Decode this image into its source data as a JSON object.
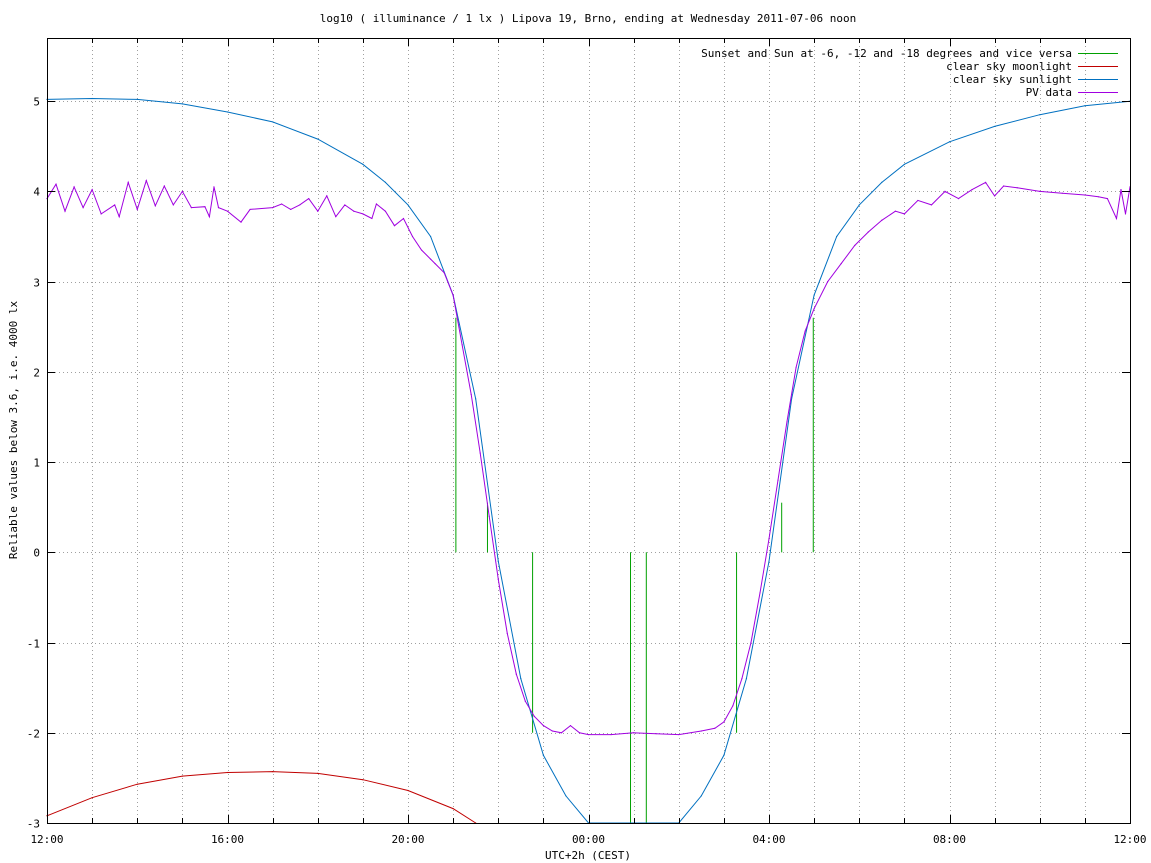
{
  "chart_data": {
    "type": "line",
    "title": "log10 ( illuminance / 1 lx ) Lipova 19, Brno, ending at Wednesday 2011-07-06 noon",
    "xlabel": "UTC+2h (CEST)",
    "ylabel": "Reliable values below 3.6, i.e. 4000 lx",
    "x_unit": "hours since 12:00 CEST (2011-07-05)",
    "xlim": [
      0,
      24
    ],
    "ylim": [
      -3,
      5.7
    ],
    "x_ticks": [
      {
        "value": 0,
        "label": "12:00"
      },
      {
        "value": 4,
        "label": "16:00"
      },
      {
        "value": 8,
        "label": "20:00"
      },
      {
        "value": 12,
        "label": "00:00"
      },
      {
        "value": 16,
        "label": "04:00"
      },
      {
        "value": 20,
        "label": "08:00"
      },
      {
        "value": 24,
        "label": "12:00"
      }
    ],
    "x_minor_step": 1,
    "y_ticks": [
      {
        "value": -3,
        "label": "-3"
      },
      {
        "value": -2,
        "label": "-2"
      },
      {
        "value": -1,
        "label": "-1"
      },
      {
        "value": 0,
        "label": "0"
      },
      {
        "value": 1,
        "label": "1"
      },
      {
        "value": 2,
        "label": "2"
      },
      {
        "value": 3,
        "label": "3"
      },
      {
        "value": 4,
        "label": "4"
      },
      {
        "value": 5,
        "label": "5"
      }
    ],
    "grid": true,
    "legend_position": "top-right",
    "series": [
      {
        "name": "Sunset and Sun at -6, -12 and -18 degrees and vice versa",
        "color": "#00a000",
        "kind": "impulses",
        "points": [
          {
            "x": 9.05,
            "y": 2.6
          },
          {
            "x": 9.75,
            "y": 0.55
          },
          {
            "x": 10.75,
            "y": -2.0
          },
          {
            "x": 12.92,
            "y": -3.0
          },
          {
            "x": 13.27,
            "y": -3.0
          },
          {
            "x": 15.27,
            "y": -2.0
          },
          {
            "x": 16.27,
            "y": 0.55
          },
          {
            "x": 16.97,
            "y": 2.6
          }
        ]
      },
      {
        "name": "clear sky moonlight",
        "color": "#c00000",
        "kind": "line",
        "points": [
          {
            "x": 0.0,
            "y": -2.92
          },
          {
            "x": 1.0,
            "y": -2.72
          },
          {
            "x": 2.0,
            "y": -2.57
          },
          {
            "x": 3.0,
            "y": -2.48
          },
          {
            "x": 4.0,
            "y": -2.44
          },
          {
            "x": 5.0,
            "y": -2.43
          },
          {
            "x": 6.0,
            "y": -2.45
          },
          {
            "x": 7.0,
            "y": -2.52
          },
          {
            "x": 8.0,
            "y": -2.64
          },
          {
            "x": 9.0,
            "y": -2.84
          },
          {
            "x": 9.5,
            "y": -3.0
          }
        ]
      },
      {
        "name": "clear sky sunlight",
        "color": "#0070c0",
        "kind": "line",
        "points": [
          {
            "x": 0.0,
            "y": 5.02
          },
          {
            "x": 1.0,
            "y": 5.03
          },
          {
            "x": 2.0,
            "y": 5.02
          },
          {
            "x": 3.0,
            "y": 4.97
          },
          {
            "x": 4.0,
            "y": 4.88
          },
          {
            "x": 5.0,
            "y": 4.77
          },
          {
            "x": 6.0,
            "y": 4.58
          },
          {
            "x": 7.0,
            "y": 4.3
          },
          {
            "x": 7.5,
            "y": 4.1
          },
          {
            "x": 8.0,
            "y": 3.85
          },
          {
            "x": 8.5,
            "y": 3.5
          },
          {
            "x": 9.0,
            "y": 2.85
          },
          {
            "x": 9.5,
            "y": 1.7
          },
          {
            "x": 10.0,
            "y": -0.1
          },
          {
            "x": 10.5,
            "y": -1.4
          },
          {
            "x": 11.0,
            "y": -2.25
          },
          {
            "x": 11.5,
            "y": -2.7
          },
          {
            "x": 12.0,
            "y": -3.0
          },
          {
            "x": 14.0,
            "y": -3.0
          },
          {
            "x": 14.5,
            "y": -2.7
          },
          {
            "x": 15.0,
            "y": -2.25
          },
          {
            "x": 15.5,
            "y": -1.4
          },
          {
            "x": 16.0,
            "y": -0.1
          },
          {
            "x": 16.5,
            "y": 1.7
          },
          {
            "x": 17.0,
            "y": 2.85
          },
          {
            "x": 17.5,
            "y": 3.5
          },
          {
            "x": 18.0,
            "y": 3.85
          },
          {
            "x": 18.5,
            "y": 4.1
          },
          {
            "x": 19.0,
            "y": 4.3
          },
          {
            "x": 20.0,
            "y": 4.55
          },
          {
            "x": 21.0,
            "y": 4.72
          },
          {
            "x": 22.0,
            "y": 4.85
          },
          {
            "x": 23.0,
            "y": 4.95
          },
          {
            "x": 24.0,
            "y": 5.0
          }
        ]
      },
      {
        "name": "PV data",
        "color": "#a000e0",
        "kind": "line",
        "points": [
          {
            "x": 0.0,
            "y": 3.92
          },
          {
            "x": 0.2,
            "y": 4.08
          },
          {
            "x": 0.4,
            "y": 3.78
          },
          {
            "x": 0.6,
            "y": 4.05
          },
          {
            "x": 0.8,
            "y": 3.82
          },
          {
            "x": 1.0,
            "y": 4.02
          },
          {
            "x": 1.2,
            "y": 3.75
          },
          {
            "x": 1.5,
            "y": 3.85
          },
          {
            "x": 1.6,
            "y": 3.72
          },
          {
            "x": 1.8,
            "y": 4.1
          },
          {
            "x": 2.0,
            "y": 3.8
          },
          {
            "x": 2.2,
            "y": 4.12
          },
          {
            "x": 2.4,
            "y": 3.84
          },
          {
            "x": 2.6,
            "y": 4.06
          },
          {
            "x": 2.8,
            "y": 3.85
          },
          {
            "x": 3.0,
            "y": 4.0
          },
          {
            "x": 3.2,
            "y": 3.82
          },
          {
            "x": 3.5,
            "y": 3.83
          },
          {
            "x": 3.6,
            "y": 3.72
          },
          {
            "x": 3.7,
            "y": 4.05
          },
          {
            "x": 3.8,
            "y": 3.82
          },
          {
            "x": 4.0,
            "y": 3.78
          },
          {
            "x": 4.3,
            "y": 3.66
          },
          {
            "x": 4.5,
            "y": 3.8
          },
          {
            "x": 5.0,
            "y": 3.82
          },
          {
            "x": 5.2,
            "y": 3.86
          },
          {
            "x": 5.4,
            "y": 3.8
          },
          {
            "x": 5.6,
            "y": 3.85
          },
          {
            "x": 5.8,
            "y": 3.92
          },
          {
            "x": 6.0,
            "y": 3.78
          },
          {
            "x": 6.2,
            "y": 3.95
          },
          {
            "x": 6.4,
            "y": 3.72
          },
          {
            "x": 6.6,
            "y": 3.85
          },
          {
            "x": 6.8,
            "y": 3.78
          },
          {
            "x": 7.0,
            "y": 3.75
          },
          {
            "x": 7.2,
            "y": 3.7
          },
          {
            "x": 7.3,
            "y": 3.86
          },
          {
            "x": 7.5,
            "y": 3.78
          },
          {
            "x": 7.7,
            "y": 3.62
          },
          {
            "x": 7.9,
            "y": 3.7
          },
          {
            "x": 8.1,
            "y": 3.5
          },
          {
            "x": 8.3,
            "y": 3.35
          },
          {
            "x": 8.5,
            "y": 3.25
          },
          {
            "x": 8.6,
            "y": 3.2
          },
          {
            "x": 8.8,
            "y": 3.1
          },
          {
            "x": 9.0,
            "y": 2.85
          },
          {
            "x": 9.2,
            "y": 2.3
          },
          {
            "x": 9.4,
            "y": 1.75
          },
          {
            "x": 9.6,
            "y": 1.1
          },
          {
            "x": 9.8,
            "y": 0.4
          },
          {
            "x": 10.0,
            "y": -0.3
          },
          {
            "x": 10.2,
            "y": -0.9
          },
          {
            "x": 10.4,
            "y": -1.35
          },
          {
            "x": 10.6,
            "y": -1.65
          },
          {
            "x": 10.8,
            "y": -1.82
          },
          {
            "x": 11.0,
            "y": -1.92
          },
          {
            "x": 11.2,
            "y": -1.98
          },
          {
            "x": 11.4,
            "y": -2.0
          },
          {
            "x": 11.6,
            "y": -1.92
          },
          {
            "x": 11.8,
            "y": -2.0
          },
          {
            "x": 12.0,
            "y": -2.02
          },
          {
            "x": 12.5,
            "y": -2.02
          },
          {
            "x": 13.0,
            "y": -2.0
          },
          {
            "x": 13.5,
            "y": -2.01
          },
          {
            "x": 14.0,
            "y": -2.02
          },
          {
            "x": 14.5,
            "y": -1.98
          },
          {
            "x": 14.8,
            "y": -1.95
          },
          {
            "x": 15.0,
            "y": -1.88
          },
          {
            "x": 15.2,
            "y": -1.7
          },
          {
            "x": 15.4,
            "y": -1.4
          },
          {
            "x": 15.6,
            "y": -1.0
          },
          {
            "x": 15.8,
            "y": -0.45
          },
          {
            "x": 16.0,
            "y": 0.15
          },
          {
            "x": 16.2,
            "y": 0.8
          },
          {
            "x": 16.4,
            "y": 1.45
          },
          {
            "x": 16.6,
            "y": 2.05
          },
          {
            "x": 16.8,
            "y": 2.45
          },
          {
            "x": 17.0,
            "y": 2.7
          },
          {
            "x": 17.3,
            "y": 3.0
          },
          {
            "x": 17.6,
            "y": 3.2
          },
          {
            "x": 17.9,
            "y": 3.4
          },
          {
            "x": 18.2,
            "y": 3.55
          },
          {
            "x": 18.5,
            "y": 3.68
          },
          {
            "x": 18.8,
            "y": 3.78
          },
          {
            "x": 19.0,
            "y": 3.75
          },
          {
            "x": 19.3,
            "y": 3.9
          },
          {
            "x": 19.6,
            "y": 3.85
          },
          {
            "x": 19.9,
            "y": 4.0
          },
          {
            "x": 20.2,
            "y": 3.92
          },
          {
            "x": 20.5,
            "y": 4.02
          },
          {
            "x": 20.8,
            "y": 4.1
          },
          {
            "x": 21.0,
            "y": 3.95
          },
          {
            "x": 21.2,
            "y": 4.06
          },
          {
            "x": 21.5,
            "y": 4.04
          },
          {
            "x": 22.0,
            "y": 4.0
          },
          {
            "x": 22.5,
            "y": 3.98
          },
          {
            "x": 23.0,
            "y": 3.96
          },
          {
            "x": 23.3,
            "y": 3.94
          },
          {
            "x": 23.5,
            "y": 3.92
          },
          {
            "x": 23.7,
            "y": 3.7
          },
          {
            "x": 23.8,
            "y": 4.02
          },
          {
            "x": 23.9,
            "y": 3.75
          },
          {
            "x": 24.0,
            "y": 4.05
          }
        ]
      }
    ]
  }
}
